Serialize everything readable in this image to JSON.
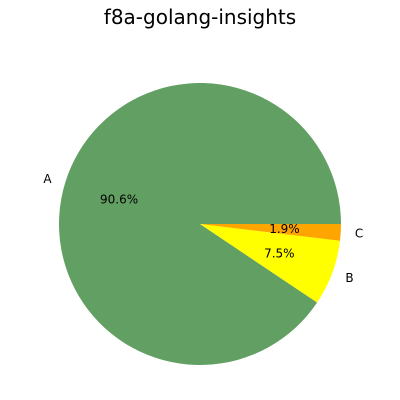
{
  "chart_data": {
    "type": "pie",
    "title": "f8a-golang-insights",
    "categories": [
      "A",
      "B",
      "C"
    ],
    "values": [
      90.6,
      7.5,
      1.9
    ],
    "value_labels": [
      "90.6%",
      "7.5%",
      "1.9%"
    ],
    "colors": [
      "#629f62",
      "#ffff00",
      "#ffa500"
    ],
    "legend": "none"
  }
}
